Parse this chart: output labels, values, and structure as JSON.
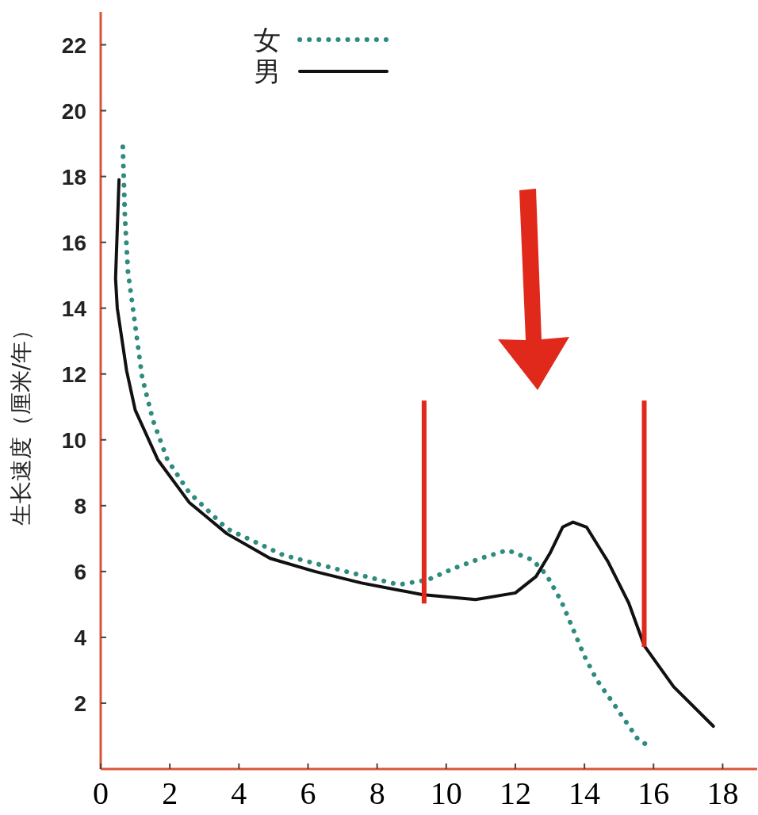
{
  "chart_data": {
    "type": "line",
    "ylabel": "生长速度（厘米/年）",
    "xlim": [
      0,
      19
    ],
    "ylim": [
      0,
      23
    ],
    "xticks": [
      0,
      2,
      4,
      6,
      8,
      10,
      12,
      14,
      16,
      18
    ],
    "yticks": [
      2,
      4,
      6,
      8,
      10,
      12,
      14,
      16,
      18,
      20,
      22
    ],
    "legend": "top",
    "grid": false,
    "series": [
      {
        "name": "女",
        "color": "#2f8a80",
        "line_style": "dotted",
        "x": [
          0.64,
          0.7,
          0.79,
          0.97,
          1.2,
          1.51,
          1.93,
          2.56,
          3.65,
          5.28,
          7.1,
          8.62,
          9.47,
          10.23,
          11.0,
          11.77,
          12.5,
          12.9,
          13.33,
          13.67,
          13.99,
          14.36,
          14.9,
          15.55,
          15.94
        ],
        "values": [
          18.9,
          16.8,
          15.1,
          13.7,
          11.9,
          10.6,
          9.4,
          8.4,
          7.3,
          6.5,
          6.0,
          5.6,
          5.75,
          6.1,
          6.4,
          6.65,
          6.35,
          5.9,
          5.1,
          4.25,
          3.45,
          2.7,
          1.9,
          0.9,
          0.65
        ]
      },
      {
        "name": "男",
        "color": "#111111",
        "line_style": "solid",
        "x": [
          0.53,
          0.43,
          0.48,
          0.75,
          1.0,
          1.65,
          2.56,
          3.65,
          4.9,
          6.2,
          7.55,
          8.55,
          9.3,
          10.85,
          12.0,
          12.6,
          13.0,
          13.37,
          13.67,
          14.06,
          14.68,
          15.28,
          15.73,
          16.58,
          17.73
        ],
        "values": [
          17.9,
          14.9,
          14.0,
          12.1,
          10.9,
          9.4,
          8.1,
          7.15,
          6.4,
          6.0,
          5.65,
          5.45,
          5.3,
          5.15,
          5.35,
          5.85,
          6.55,
          7.35,
          7.5,
          7.35,
          6.3,
          5.05,
          3.75,
          2.5,
          1.3
        ]
      },
      {
        "color": "#e0291b",
        "line_style": "solid",
        "x": [
          9.36,
          9.36
        ],
        "values": [
          5.03,
          11.19
        ]
      },
      {
        "color": "#e0291b",
        "line_style": "solid",
        "x": [
          15.73,
          15.73
        ],
        "values": [
          3.71,
          11.19
        ]
      }
    ]
  }
}
